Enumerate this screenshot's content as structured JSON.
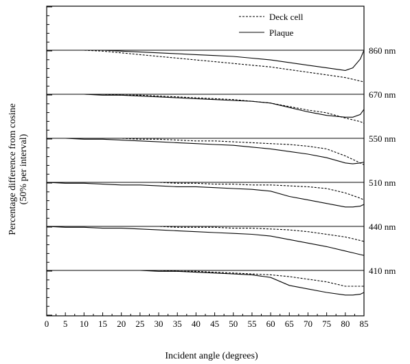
{
  "chart_data": {
    "type": "line",
    "xlabel": "Incident angle (degrees)",
    "ylabel": "Percentage difference from cosine",
    "ylabel_sub": "(50% per interval)",
    "xlim": [
      0,
      85
    ],
    "x_ticks": [
      "0",
      "5",
      "10",
      "15",
      "20",
      "25",
      "30",
      "35",
      "40",
      "45",
      "50",
      "55",
      "60",
      "65",
      "70",
      "75",
      "80",
      "85"
    ],
    "legend": {
      "placement": "top-right",
      "entries": [
        {
          "name": "Deck cell",
          "style": "dashed"
        },
        {
          "name": "Plaque",
          "style": "solid"
        }
      ]
    },
    "x": [
      0,
      5,
      10,
      15,
      20,
      25,
      30,
      35,
      40,
      45,
      50,
      55,
      60,
      65,
      70,
      75,
      80,
      82,
      84,
      85
    ],
    "bands": [
      {
        "label": "860 nm",
        "deck_cell": [
          0,
          0,
          0,
          -1,
          -3,
          -5,
          -7,
          -9,
          -11,
          -13,
          -15,
          -17,
          -19,
          -22,
          -25,
          -28,
          -31,
          -33,
          -35,
          -36
        ],
        "plaque": [
          0,
          0,
          0,
          0,
          -1,
          -2,
          -3,
          -4,
          -5,
          -6,
          -7,
          -9,
          -11,
          -14,
          -17,
          -20,
          -23,
          -20,
          -10,
          0
        ]
      },
      {
        "label": "670 nm",
        "deck_cell": [
          0,
          0,
          0,
          0,
          -1,
          -1,
          -2,
          -3,
          -4,
          -5,
          -6,
          -8,
          -10,
          -14,
          -18,
          -21,
          -27,
          -29,
          -31,
          -33
        ],
        "plaque": [
          0,
          0,
          0,
          -1,
          -1,
          -2,
          -3,
          -4,
          -5,
          -6,
          -7,
          -8,
          -10,
          -15,
          -20,
          -24,
          -26,
          -26,
          -23,
          -17
        ]
      },
      {
        "label": "550 nm",
        "deck_cell": [
          0,
          0,
          0,
          0,
          0,
          -1,
          -1,
          -2,
          -3,
          -3,
          -4,
          -5,
          -6,
          -7,
          -9,
          -12,
          -20,
          -24,
          -28,
          -30
        ],
        "plaque": [
          0,
          0,
          -1,
          -1,
          -2,
          -3,
          -4,
          -5,
          -6,
          -7,
          -8,
          -10,
          -12,
          -15,
          -18,
          -22,
          -28,
          -29,
          -28,
          -27
        ]
      },
      {
        "label": "510 nm",
        "deck_cell": [
          0,
          0,
          0,
          0,
          0,
          0,
          0,
          -1,
          -1,
          -2,
          -2,
          -3,
          -3,
          -4,
          -5,
          -7,
          -12,
          -15,
          -18,
          -20
        ],
        "plaque": [
          0,
          -1,
          -1,
          -2,
          -3,
          -3,
          -4,
          -5,
          -5,
          -6,
          -7,
          -8,
          -10,
          -16,
          -20,
          -24,
          -28,
          -28,
          -27,
          -25
        ]
      },
      {
        "label": "440 nm",
        "deck_cell": [
          0,
          0,
          0,
          0,
          0,
          0,
          0,
          -1,
          -1,
          -1,
          -2,
          -2,
          -3,
          -4,
          -6,
          -9,
          -12,
          -14,
          -16,
          -17
        ],
        "plaque": [
          0,
          -1,
          -1,
          -2,
          -2,
          -3,
          -4,
          -5,
          -6,
          -7,
          -8,
          -9,
          -11,
          -15,
          -19,
          -23,
          -28,
          -30,
          -32,
          -33
        ]
      },
      {
        "label": "410 nm",
        "deck_cell": [
          0,
          0,
          0,
          0,
          0,
          0,
          0,
          -1,
          -1,
          -2,
          -3,
          -4,
          -5,
          -7,
          -10,
          -13,
          -18,
          -18,
          -18,
          -18
        ],
        "plaque": [
          0,
          0,
          0,
          0,
          0,
          0,
          -1,
          -1,
          -2,
          -3,
          -4,
          -5,
          -8,
          -17,
          -21,
          -25,
          -28,
          -28,
          -27,
          -25
        ]
      }
    ]
  }
}
